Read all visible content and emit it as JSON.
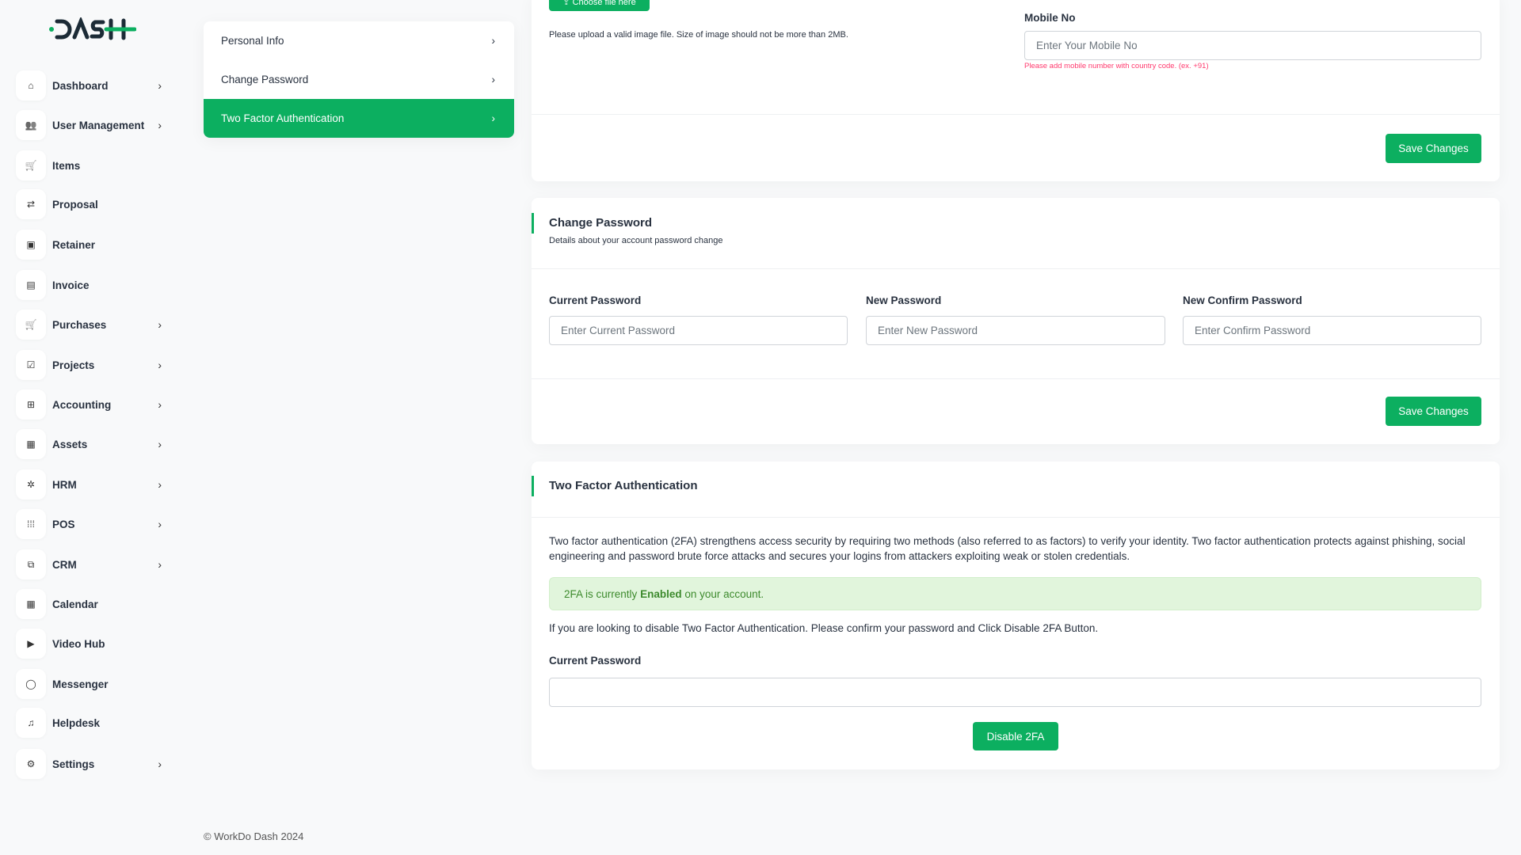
{
  "brand": {
    "logo_text": "DASH",
    "accent": "#0caf60"
  },
  "sidebar": {
    "items": [
      {
        "label": "Dashboard",
        "icon": "home-icon",
        "chevron": true
      },
      {
        "label": "User Management",
        "icon": "users-icon",
        "chevron": true
      },
      {
        "label": "Items",
        "icon": "cart-icon",
        "chevron": false
      },
      {
        "label": "Proposal",
        "icon": "proposal-icon",
        "chevron": false
      },
      {
        "label": "Retainer",
        "icon": "retainer-icon",
        "chevron": false
      },
      {
        "label": "Invoice",
        "icon": "file-icon",
        "chevron": false
      },
      {
        "label": "Purchases",
        "icon": "cart-icon",
        "chevron": true
      },
      {
        "label": "Projects",
        "icon": "checkbox-icon",
        "chevron": true
      },
      {
        "label": "Accounting",
        "icon": "grid-icon",
        "chevron": true
      },
      {
        "label": "Assets",
        "icon": "calculator-icon",
        "chevron": true
      },
      {
        "label": "HRM",
        "icon": "hrm-icon",
        "chevron": true
      },
      {
        "label": "POS",
        "icon": "dots-grid-icon",
        "chevron": true
      },
      {
        "label": "CRM",
        "icon": "crm-icon",
        "chevron": true
      },
      {
        "label": "Calendar",
        "icon": "calendar-icon",
        "chevron": false
      },
      {
        "label": "Video Hub",
        "icon": "video-icon",
        "chevron": false
      },
      {
        "label": "Messenger",
        "icon": "chat-icon",
        "chevron": false
      },
      {
        "label": "Helpdesk",
        "icon": "headset-icon",
        "chevron": false
      },
      {
        "label": "Settings",
        "icon": "gear-icon",
        "chevron": true
      }
    ]
  },
  "settings_menu": {
    "items": [
      {
        "label": "Personal Info",
        "active": false
      },
      {
        "label": "Change Password",
        "active": false
      },
      {
        "label": "Two Factor Authentication",
        "active": true
      }
    ]
  },
  "personal_info": {
    "choose_file_label": "Choose file here",
    "upload_hint": "Please upload a valid image file. Size of image should not be more than 2MB.",
    "mobile_label": "Mobile No",
    "mobile_placeholder": "Enter Your Mobile No",
    "mobile_hint": "Please add mobile number with country code. (ex. +91)",
    "save_label": "Save Changes"
  },
  "change_password": {
    "title": "Change Password",
    "subtitle": "Details about your account password change",
    "current_label": "Current Password",
    "current_placeholder": "Enter Current Password",
    "new_label": "New Password",
    "new_placeholder": "Enter New Password",
    "confirm_label": "New Confirm Password",
    "confirm_placeholder": "Enter Confirm Password",
    "save_label": "Save Changes"
  },
  "two_factor": {
    "title": "Two Factor Authentication",
    "description": "Two factor authentication (2FA) strengthens access security by requiring two methods (also referred to as factors) to verify your identity. Two factor authentication protects against phishing, social engineering and password brute force attacks and secures your logins from attackers exploiting weak or stolen credentials.",
    "status_prefix": "2FA is currently",
    "status_value": "Enabled",
    "status_suffix": "on your account.",
    "instruction": "If you are looking to disable Two Factor Authentication. Please confirm your password and Click Disable 2FA Button.",
    "password_label": "Current Password",
    "password_value": "",
    "disable_label": "Disable 2FA"
  },
  "footer": {
    "copyright": "© WorkDo Dash 2024"
  }
}
